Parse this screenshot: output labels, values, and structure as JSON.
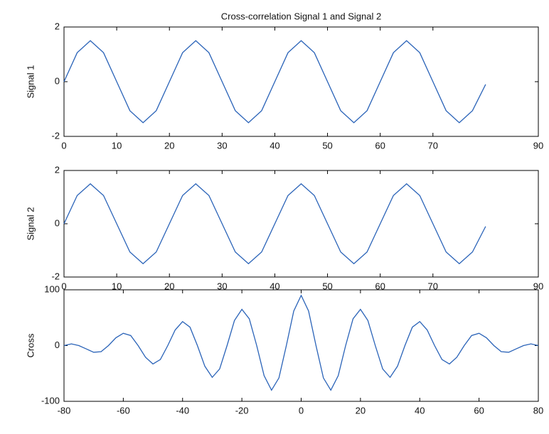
{
  "chart_data": [
    {
      "type": "line",
      "title": "Cross-correlation Signal 1 and Signal 2",
      "ylabel": "Signal 1",
      "color": "#2a63b8",
      "x": [
        0,
        2.5,
        5,
        7.5,
        10,
        12.5,
        15,
        17.5,
        20,
        22.5,
        25,
        27.5,
        30,
        32.5,
        35,
        37.5,
        40,
        42.5,
        45,
        47.5,
        50,
        52.5,
        55,
        57.5,
        60,
        62.5,
        65,
        67.5,
        70,
        72.5,
        75,
        77.5,
        80
      ],
      "values": [
        0,
        1.06,
        1.5,
        1.06,
        0,
        -1.06,
        -1.5,
        -1.06,
        0,
        1.06,
        1.5,
        1.06,
        0,
        -1.06,
        -1.5,
        -1.06,
        0,
        1.06,
        1.5,
        1.06,
        0,
        -1.06,
        -1.5,
        -1.06,
        0,
        1.06,
        1.5,
        1.06,
        0,
        -1.06,
        -1.5,
        -1.06,
        -0.1
      ],
      "xlim": [
        0,
        90
      ],
      "xticks": [
        0,
        10,
        20,
        30,
        40,
        50,
        60,
        70,
        90
      ],
      "ylim": [
        -2,
        2
      ],
      "yticks": [
        -2,
        0,
        2
      ]
    },
    {
      "type": "line",
      "ylabel": "Signal 2",
      "color": "#2a63b8",
      "x": [
        0,
        2.5,
        5,
        7.5,
        10,
        12.5,
        15,
        17.5,
        20,
        22.5,
        25,
        27.5,
        30,
        32.5,
        35,
        37.5,
        40,
        42.5,
        45,
        47.5,
        50,
        52.5,
        55,
        57.5,
        60,
        62.5,
        65,
        67.5,
        70,
        72.5,
        75,
        77.5,
        80
      ],
      "values": [
        0,
        1.06,
        1.5,
        1.06,
        0,
        -1.06,
        -1.5,
        -1.06,
        0,
        1.06,
        1.5,
        1.06,
        0,
        -1.06,
        -1.5,
        -1.06,
        0,
        1.06,
        1.5,
        1.06,
        0,
        -1.06,
        -1.5,
        -1.06,
        0,
        1.06,
        1.5,
        1.06,
        0,
        -1.06,
        -1.5,
        -1.06,
        -0.1
      ],
      "xlim": [
        0,
        90
      ],
      "xticks": [
        0,
        10,
        20,
        30,
        40,
        50,
        60,
        70,
        90
      ],
      "ylim": [
        -2,
        2
      ],
      "yticks": [
        -2,
        0,
        2
      ]
    },
    {
      "type": "line",
      "ylabel": "Cross",
      "color": "#2a63b8",
      "x": [
        -80,
        -77.5,
        -75,
        -72.5,
        -70,
        -67.5,
        -65,
        -62.5,
        -60,
        -57.5,
        -55,
        -52.5,
        -50,
        -47.5,
        -45,
        -42.5,
        -40,
        -37.5,
        -35,
        -32.5,
        -30,
        -27.5,
        -25,
        -22.5,
        -20,
        -17.5,
        -15,
        -12.5,
        -10,
        -7.5,
        -5,
        -2.5,
        0,
        2.5,
        5,
        7.5,
        10,
        12.5,
        15,
        17.5,
        20,
        22.5,
        25,
        27.5,
        30,
        32.5,
        35,
        37.5,
        40,
        42.5,
        45,
        47.5,
        50,
        52.5,
        55,
        57.5,
        60,
        62.5,
        65,
        67.5,
        70,
        72.5,
        75,
        77.5,
        80
      ],
      "values": [
        0,
        3,
        0,
        -6,
        -12,
        -11,
        0,
        14,
        22,
        18,
        0,
        -21,
        -33,
        -25,
        0,
        28,
        43,
        33,
        0,
        -37,
        -57,
        -42,
        0,
        45,
        65,
        48,
        0,
        -54,
        -80,
        -58,
        0,
        62,
        90,
        62,
        0,
        -58,
        -80,
        -54,
        0,
        48,
        65,
        45,
        0,
        -42,
        -57,
        -37,
        0,
        33,
        43,
        28,
        0,
        -25,
        -33,
        -21,
        0,
        18,
        22,
        14,
        0,
        -11,
        -12,
        -6,
        0,
        3,
        0
      ],
      "xlim": [
        -80,
        80
      ],
      "xticks": [
        -80,
        -60,
        -40,
        -20,
        0,
        20,
        40,
        60,
        80
      ],
      "ylim": [
        -100,
        100
      ],
      "yticks": [
        -100,
        0,
        100
      ]
    }
  ]
}
